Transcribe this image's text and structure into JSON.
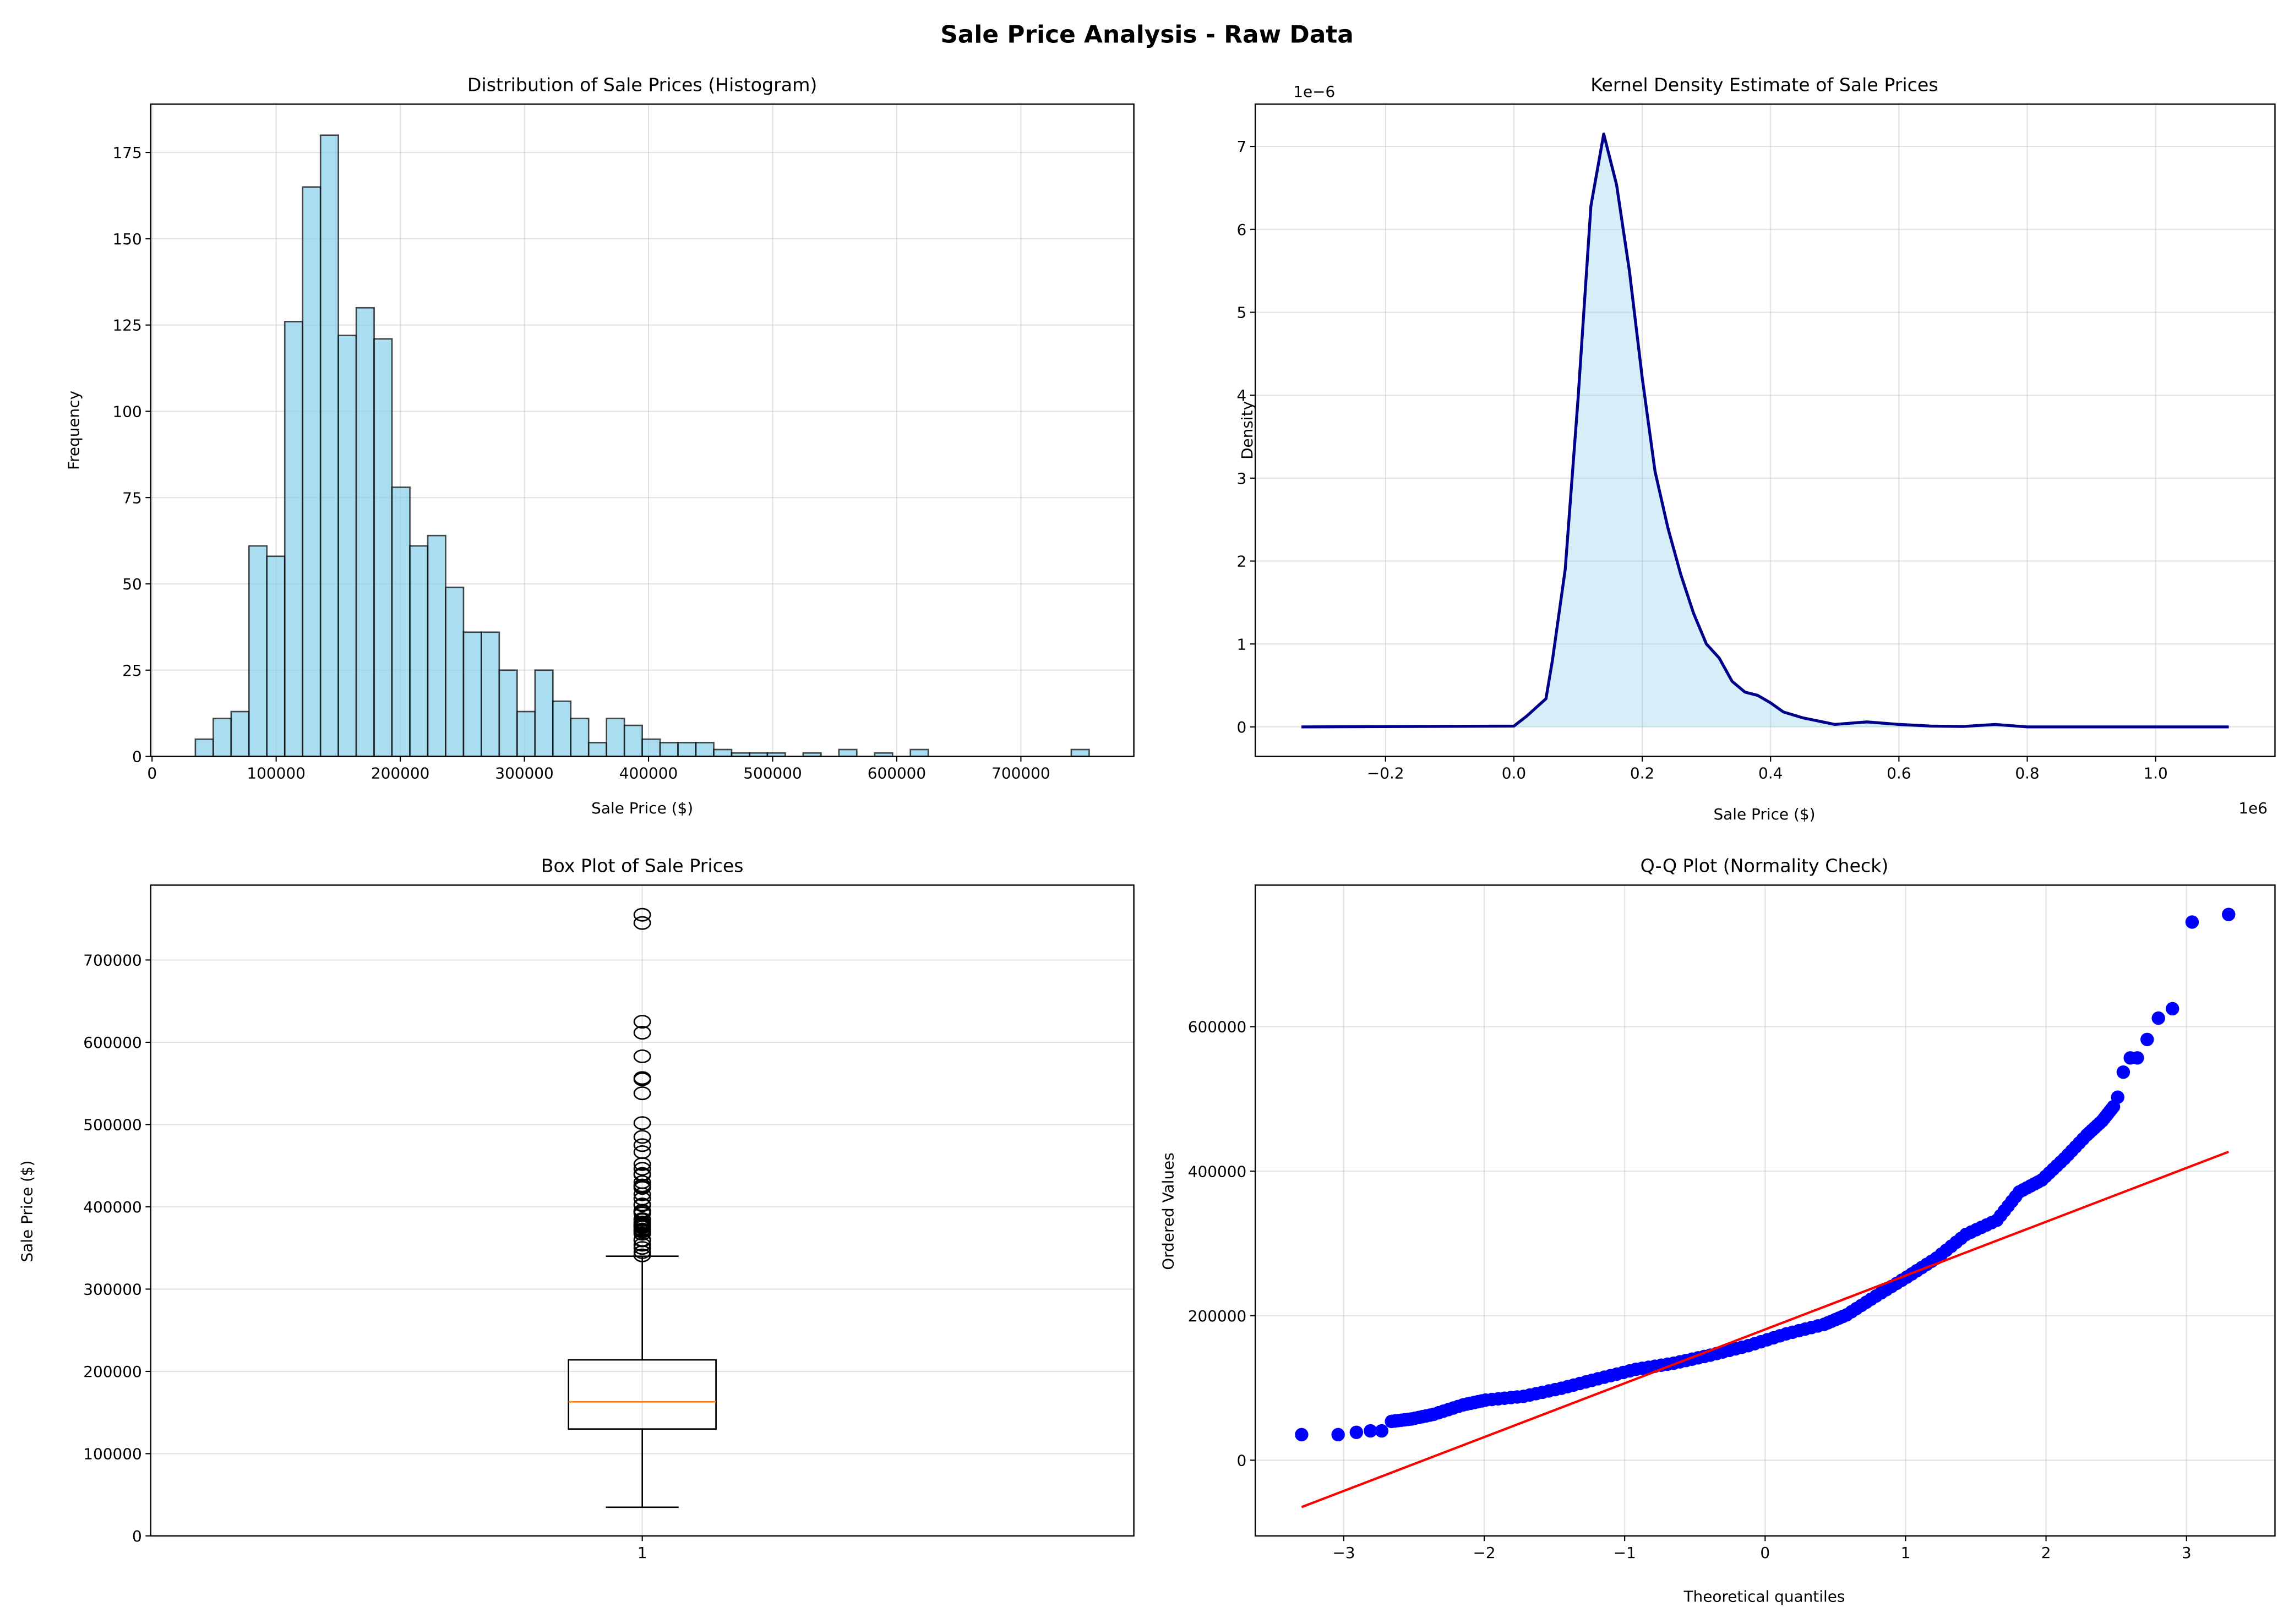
{
  "suptitle": "Sale Price Analysis - Raw Data",
  "chart_data": [
    {
      "type": "bar",
      "title": "Distribution of Sale Prices (Histogram)",
      "xlabel": "Sale Price ($)",
      "ylabel": "Frequency",
      "bin_range": [
        34900,
        755000
      ],
      "counts": [
        5,
        11,
        13,
        61,
        58,
        126,
        165,
        180,
        122,
        130,
        121,
        78,
        61,
        64,
        49,
        36,
        36,
        25,
        13,
        25,
        16,
        11,
        4,
        11,
        9,
        5,
        4,
        4,
        4,
        2,
        1,
        1,
        1,
        0,
        1,
        0,
        2,
        0,
        1,
        0,
        2,
        0,
        0,
        0,
        0,
        0,
        0,
        0,
        0,
        2
      ],
      "xlim": [
        -1100,
        791000
      ],
      "ylim": [
        0,
        189
      ],
      "xticks": [
        0,
        100000,
        200000,
        300000,
        400000,
        500000,
        600000,
        700000
      ],
      "xtick_labels": [
        "0",
        "100000",
        "200000",
        "300000",
        "400000",
        "500000",
        "600000",
        "700000"
      ],
      "yticks": [
        0,
        25,
        50,
        75,
        100,
        125,
        150,
        175
      ],
      "ytick_labels": [
        "0",
        "25",
        "50",
        "75",
        "100",
        "125",
        "150",
        "175"
      ],
      "grid": true,
      "colors": {
        "fill": "#87ceeb",
        "edge": "#000000"
      }
    },
    {
      "type": "area",
      "title": "Kernel Density Estimate of Sale Prices",
      "xlabel": "Sale Price ($)",
      "ylabel": "Density",
      "x_offset_label": "1e6",
      "y_offset_label": "1e−6",
      "x": [
        -0.331,
        0.0,
        0.02,
        0.05,
        0.06,
        0.08,
        0.1,
        0.12,
        0.14,
        0.16,
        0.18,
        0.2,
        0.22,
        0.24,
        0.26,
        0.28,
        0.3,
        0.32,
        0.34,
        0.36,
        0.38,
        0.4,
        0.42,
        0.45,
        0.5,
        0.55,
        0.6,
        0.65,
        0.7,
        0.75,
        0.8,
        1.114
      ],
      "y": [
        0,
        0.01,
        0.13,
        0.34,
        0.8,
        1.9,
        3.96,
        6.28,
        7.15,
        6.54,
        5.5,
        4.21,
        3.08,
        2.4,
        1.84,
        1.37,
        1.0,
        0.83,
        0.55,
        0.42,
        0.38,
        0.29,
        0.18,
        0.11,
        0.03,
        0.06,
        0.03,
        0.01,
        0.005,
        0.03,
        0,
        0
      ],
      "xlim": [
        -0.403,
        1.186
      ],
      "ylim": [
        -0.356,
        7.51
      ],
      "xticks": [
        -0.2,
        0.0,
        0.2,
        0.4,
        0.6,
        0.8,
        1.0
      ],
      "xtick_labels": [
        "−0.2",
        "0.0",
        "0.2",
        "0.4",
        "0.6",
        "0.8",
        "1.0"
      ],
      "yticks": [
        0,
        1,
        2,
        3,
        4,
        5,
        6,
        7
      ],
      "ytick_labels": [
        "0",
        "1",
        "2",
        "3",
        "4",
        "5",
        "6",
        "7"
      ],
      "grid": true,
      "colors": {
        "line": "#00008b",
        "fill": "#87ceeb"
      }
    },
    {
      "type": "box",
      "title": "Box Plot of Sale Prices",
      "ylabel": "Sale Price ($)",
      "categories": [
        "1"
      ],
      "median": 163000,
      "q1": 129975,
      "q3": 214000,
      "whisker_low": 34900,
      "whisker_high": 340000,
      "fliers": [
        755000,
        745000,
        625000,
        611657,
        582933,
        556581,
        555000,
        538000,
        501837,
        485000,
        475000,
        466500,
        451950,
        446261,
        440000,
        438780,
        430000,
        426000,
        424870,
        423000,
        415298,
        410000,
        402861,
        402000,
        395192,
        394617,
        394432,
        392500,
        392000,
        385000,
        383970,
        381000,
        380000,
        378500,
        377500,
        377426,
        376162,
        375000,
        372500,
        372402,
        370878,
        369900,
        367294,
        360000,
        359100,
        354000,
        350000,
        345000,
        341000
      ],
      "xlim": [
        0.5,
        1.5
      ],
      "ylim": [
        0,
        791000
      ],
      "yticks": [
        0,
        100000,
        200000,
        300000,
        400000,
        500000,
        600000,
        700000
      ],
      "ytick_labels": [
        "0",
        "100000",
        "200000",
        "300000",
        "400000",
        "500000",
        "600000",
        "700000"
      ],
      "grid": true,
      "colors": {
        "median": "#ff7f0e",
        "box": "#000000"
      }
    },
    {
      "type": "scatter",
      "title": "Q-Q Plot (Normality Check)",
      "xlabel": "Theoretical quantiles",
      "ylabel": "Ordered Values",
      "x": [
        -3.3,
        -3.04,
        -2.91,
        -2.81,
        -2.73,
        -2.66,
        -2.52,
        -2.36,
        -2.15,
        -1.99,
        -1.72,
        -1.45,
        -1.19,
        -0.92,
        -0.65,
        -0.39,
        -0.12,
        0.15,
        0.42,
        0.58,
        0.79,
        1.01,
        1.22,
        1.43,
        1.65,
        1.81,
        1.97,
        2.13,
        2.29,
        2.4,
        2.48,
        2.51,
        2.55,
        2.6,
        2.65,
        2.72,
        2.8,
        2.9,
        3.04,
        3.3
      ],
      "y": [
        35400,
        35400,
        38600,
        40600,
        40600,
        53700,
        57000,
        63500,
        76600,
        83200,
        88400,
        99600,
        112700,
        125800,
        134300,
        145400,
        158500,
        174900,
        188000,
        201100,
        227300,
        253500,
        279700,
        312500,
        332100,
        371400,
        387800,
        417300,
        450000,
        469700,
        489300,
        502400,
        537100,
        556800,
        556800,
        582300,
        611800,
        624900,
        744800,
        755300
      ],
      "fit_line": {
        "slope": 74500,
        "intercept": 181000,
        "x_range": [
          -3.3,
          3.3
        ]
      },
      "xlim": [
        -3.63,
        3.63
      ],
      "ylim": [
        -104800,
        795900
      ],
      "xticks": [
        -3,
        -2,
        -1,
        0,
        1,
        2,
        3
      ],
      "xtick_labels": [
        "−3",
        "−2",
        "−1",
        "0",
        "1",
        "2",
        "3"
      ],
      "yticks": [
        0,
        200000,
        400000,
        600000
      ],
      "ytick_labels": [
        "0",
        "200000",
        "400000",
        "600000"
      ],
      "grid": true,
      "colors": {
        "points": "#0000ff",
        "line": "#ff0000"
      }
    }
  ]
}
